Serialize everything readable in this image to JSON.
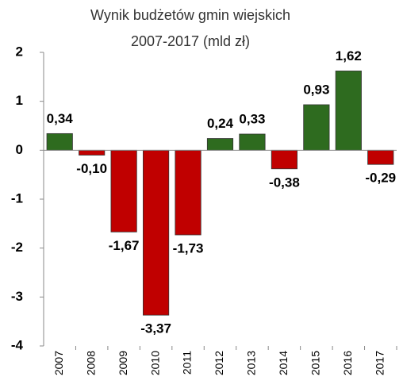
{
  "chart_data": {
    "type": "bar",
    "title": "Wynik budżetów gmin wiejskich",
    "subtitle": "2007-2017  (mld zł)",
    "categories": [
      "2007",
      "2008",
      "2009",
      "2010",
      "2011",
      "2012",
      "2013",
      "2014",
      "2015",
      "2016",
      "2017"
    ],
    "values": [
      0.34,
      -0.1,
      -1.67,
      -3.37,
      -1.73,
      0.24,
      0.33,
      -0.38,
      0.93,
      1.62,
      -0.29
    ],
    "value_labels": [
      "0,34",
      "-0,10",
      "-1,67",
      "-3,37",
      "-1,73",
      "0,24",
      "0,33",
      "-0,38",
      "0,93",
      "1,62",
      "-0,29"
    ],
    "positive_color": "#2e6b1f",
    "negative_color": "#c00000",
    "ylim": [
      -4,
      2
    ],
    "yticks": [
      -4,
      -3,
      -2,
      -1,
      0,
      1,
      2
    ],
    "grid": false
  }
}
